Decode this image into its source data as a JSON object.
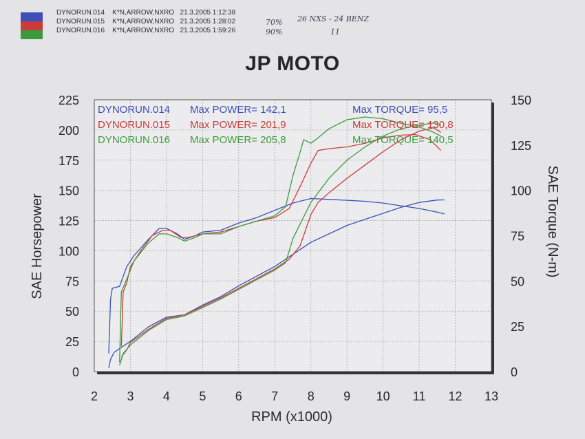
{
  "header": {
    "runs": [
      {
        "id": "DYNORUN.014",
        "desc": "K*N,ARROW,NXRO",
        "date": "21.3.2005",
        "time": "1:12:38"
      },
      {
        "id": "DYNORUN.015",
        "desc": "K*N,ARROW,NXRO",
        "date": "21.3.2005",
        "time": "1:28:02"
      },
      {
        "id": "DYNORUN.016",
        "desc": "K*N,ARROW,NXRO",
        "date": "21.3.2005",
        "time": "1:59:26"
      }
    ],
    "notes": [
      "70%",
      "26 NXS - 24 BENZ",
      "90%",
      "11"
    ]
  },
  "chart_data": {
    "type": "line",
    "title": "JP MOTO",
    "xlabel": "RPM (x1000)",
    "ylabel": "SAE Horsepower",
    "y2label": "SAE Torque (N-m)",
    "xlim": [
      2,
      13
    ],
    "ylim": [
      0,
      225
    ],
    "y2lim": [
      0,
      150
    ],
    "xticks": [
      "2",
      "3",
      "4",
      "5",
      "6",
      "7",
      "8",
      "9",
      "10",
      "11",
      "12",
      "13"
    ],
    "yticks": [
      "0",
      "25",
      "50",
      "75",
      "100",
      "125",
      "150",
      "175",
      "200",
      "225"
    ],
    "y2ticks": [
      "0",
      "25",
      "50",
      "75",
      "100",
      "125",
      "150"
    ],
    "grid": true,
    "colors": {
      "run014": "#3a4fb8",
      "run015": "#cc3a3a",
      "run016": "#3c9a3c"
    },
    "legend": [
      {
        "run": "DYNORUN.014",
        "power": "Max POWER= 142,1",
        "torque": "Max TORQUE= 95,5",
        "color": "#3a4fb8"
      },
      {
        "run": "DYNORUN.015",
        "power": "Max POWER= 201,9",
        "torque": "Max TORQUE= 130,8",
        "color": "#cc3a3a"
      },
      {
        "run": "DYNORUN.016",
        "power": "Max POWER= 205,8",
        "torque": "Max TORQUE= 140,5",
        "color": "#3c9a3c"
      }
    ],
    "series": [
      {
        "run": "DYNORUN.014",
        "measure": "power",
        "axis": "hp",
        "color": "#3a4fb8",
        "points": [
          [
            2.4,
            3
          ],
          [
            2.45,
            10
          ],
          [
            2.55,
            16
          ],
          [
            2.7,
            19
          ],
          [
            3.0,
            25
          ],
          [
            3.5,
            37
          ],
          [
            4.0,
            45
          ],
          [
            4.5,
            47
          ],
          [
            5.0,
            55
          ],
          [
            5.5,
            62
          ],
          [
            6.0,
            71
          ],
          [
            6.5,
            79
          ],
          [
            7.0,
            87
          ],
          [
            7.5,
            97
          ],
          [
            8.0,
            107
          ],
          [
            8.5,
            114
          ],
          [
            9.0,
            121
          ],
          [
            9.5,
            126
          ],
          [
            10.0,
            131
          ],
          [
            10.5,
            136
          ],
          [
            11.0,
            140
          ],
          [
            11.5,
            142
          ],
          [
            11.7,
            142.1
          ]
        ]
      },
      {
        "run": "DYNORUN.014",
        "measure": "torque",
        "axis": "nm",
        "color": "#3a4fb8",
        "points": [
          [
            2.4,
            10
          ],
          [
            2.45,
            40
          ],
          [
            2.5,
            46
          ],
          [
            2.7,
            47
          ],
          [
            2.9,
            58
          ],
          [
            3.1,
            64
          ],
          [
            3.5,
            73
          ],
          [
            3.8,
            79
          ],
          [
            4.0,
            79
          ],
          [
            4.3,
            76
          ],
          [
            4.5,
            73
          ],
          [
            4.8,
            75
          ],
          [
            5.0,
            77
          ],
          [
            5.5,
            78
          ],
          [
            6.0,
            82
          ],
          [
            6.5,
            85
          ],
          [
            7.0,
            89
          ],
          [
            7.5,
            93
          ],
          [
            8.0,
            95.5
          ],
          [
            8.5,
            95
          ],
          [
            9.0,
            94.5
          ],
          [
            9.5,
            94
          ],
          [
            10.0,
            93
          ],
          [
            10.5,
            91.5
          ],
          [
            11.0,
            90
          ],
          [
            11.5,
            88
          ],
          [
            11.7,
            87
          ]
        ]
      },
      {
        "run": "DYNORUN.015",
        "measure": "power",
        "axis": "hp",
        "color": "#cc3a3a",
        "points": [
          [
            2.75,
            12
          ],
          [
            2.9,
            18
          ],
          [
            3.0,
            24
          ],
          [
            3.5,
            35
          ],
          [
            4.0,
            44
          ],
          [
            4.5,
            47
          ],
          [
            5.0,
            54
          ],
          [
            5.5,
            61
          ],
          [
            6.0,
            69
          ],
          [
            6.5,
            77
          ],
          [
            7.0,
            85
          ],
          [
            7.4,
            93
          ],
          [
            7.7,
            104
          ],
          [
            8.0,
            130
          ],
          [
            8.2,
            140
          ],
          [
            8.5,
            148
          ],
          [
            9.0,
            160
          ],
          [
            9.5,
            171
          ],
          [
            10.0,
            182
          ],
          [
            10.5,
            192
          ],
          [
            11.0,
            199
          ],
          [
            11.4,
            201.9
          ],
          [
            11.6,
            198
          ]
        ]
      },
      {
        "run": "DYNORUN.015",
        "measure": "torque",
        "axis": "nm",
        "color": "#cc3a3a",
        "points": [
          [
            2.75,
            14
          ],
          [
            2.8,
            44
          ],
          [
            2.9,
            49
          ],
          [
            3.0,
            58
          ],
          [
            3.3,
            67
          ],
          [
            3.6,
            75
          ],
          [
            3.9,
            78
          ],
          [
            4.1,
            78
          ],
          [
            4.4,
            74
          ],
          [
            4.6,
            74
          ],
          [
            5.0,
            76
          ],
          [
            5.5,
            77
          ],
          [
            6.0,
            80
          ],
          [
            6.5,
            83
          ],
          [
            7.0,
            85
          ],
          [
            7.4,
            90
          ],
          [
            7.7,
            102
          ],
          [
            8.0,
            115
          ],
          [
            8.2,
            122
          ],
          [
            8.5,
            123
          ],
          [
            9.0,
            124
          ],
          [
            9.5,
            126
          ],
          [
            10.0,
            129
          ],
          [
            10.5,
            130.5
          ],
          [
            10.9,
            130.8
          ],
          [
            11.3,
            128
          ],
          [
            11.6,
            122
          ]
        ]
      },
      {
        "run": "DYNORUN.016",
        "measure": "power",
        "axis": "hp",
        "color": "#3c9a3c",
        "points": [
          [
            2.7,
            5
          ],
          [
            2.8,
            15
          ],
          [
            3.0,
            22
          ],
          [
            3.5,
            34
          ],
          [
            4.0,
            43
          ],
          [
            4.5,
            46
          ],
          [
            5.0,
            53
          ],
          [
            5.5,
            60
          ],
          [
            6.0,
            68
          ],
          [
            6.5,
            76
          ],
          [
            7.0,
            84
          ],
          [
            7.3,
            90
          ],
          [
            7.5,
            110
          ],
          [
            7.8,
            128
          ],
          [
            8.0,
            140
          ],
          [
            8.5,
            160
          ],
          [
            9.0,
            175
          ],
          [
            9.5,
            186
          ],
          [
            10.0,
            195
          ],
          [
            10.5,
            201
          ],
          [
            11.0,
            204
          ],
          [
            11.4,
            205.8
          ],
          [
            11.6,
            204
          ]
        ]
      },
      {
        "run": "DYNORUN.016",
        "measure": "torque",
        "axis": "nm",
        "color": "#3c9a3c",
        "points": [
          [
            2.7,
            5
          ],
          [
            2.75,
            44
          ],
          [
            2.9,
            51
          ],
          [
            3.1,
            61
          ],
          [
            3.5,
            71
          ],
          [
            3.8,
            76
          ],
          [
            4.0,
            76
          ],
          [
            4.3,
            74
          ],
          [
            4.5,
            72
          ],
          [
            4.8,
            74
          ],
          [
            5.0,
            76
          ],
          [
            5.5,
            76
          ],
          [
            6.0,
            80
          ],
          [
            6.5,
            83
          ],
          [
            7.0,
            86
          ],
          [
            7.3,
            91
          ],
          [
            7.5,
            108
          ],
          [
            7.7,
            121
          ],
          [
            7.8,
            128
          ],
          [
            8.0,
            126
          ],
          [
            8.2,
            129
          ],
          [
            8.5,
            134
          ],
          [
            9.0,
            139
          ],
          [
            9.5,
            140.5
          ],
          [
            10.0,
            139.5
          ],
          [
            10.5,
            137
          ],
          [
            11.0,
            135
          ],
          [
            11.4,
            132
          ],
          [
            11.6,
            130
          ]
        ]
      }
    ]
  }
}
